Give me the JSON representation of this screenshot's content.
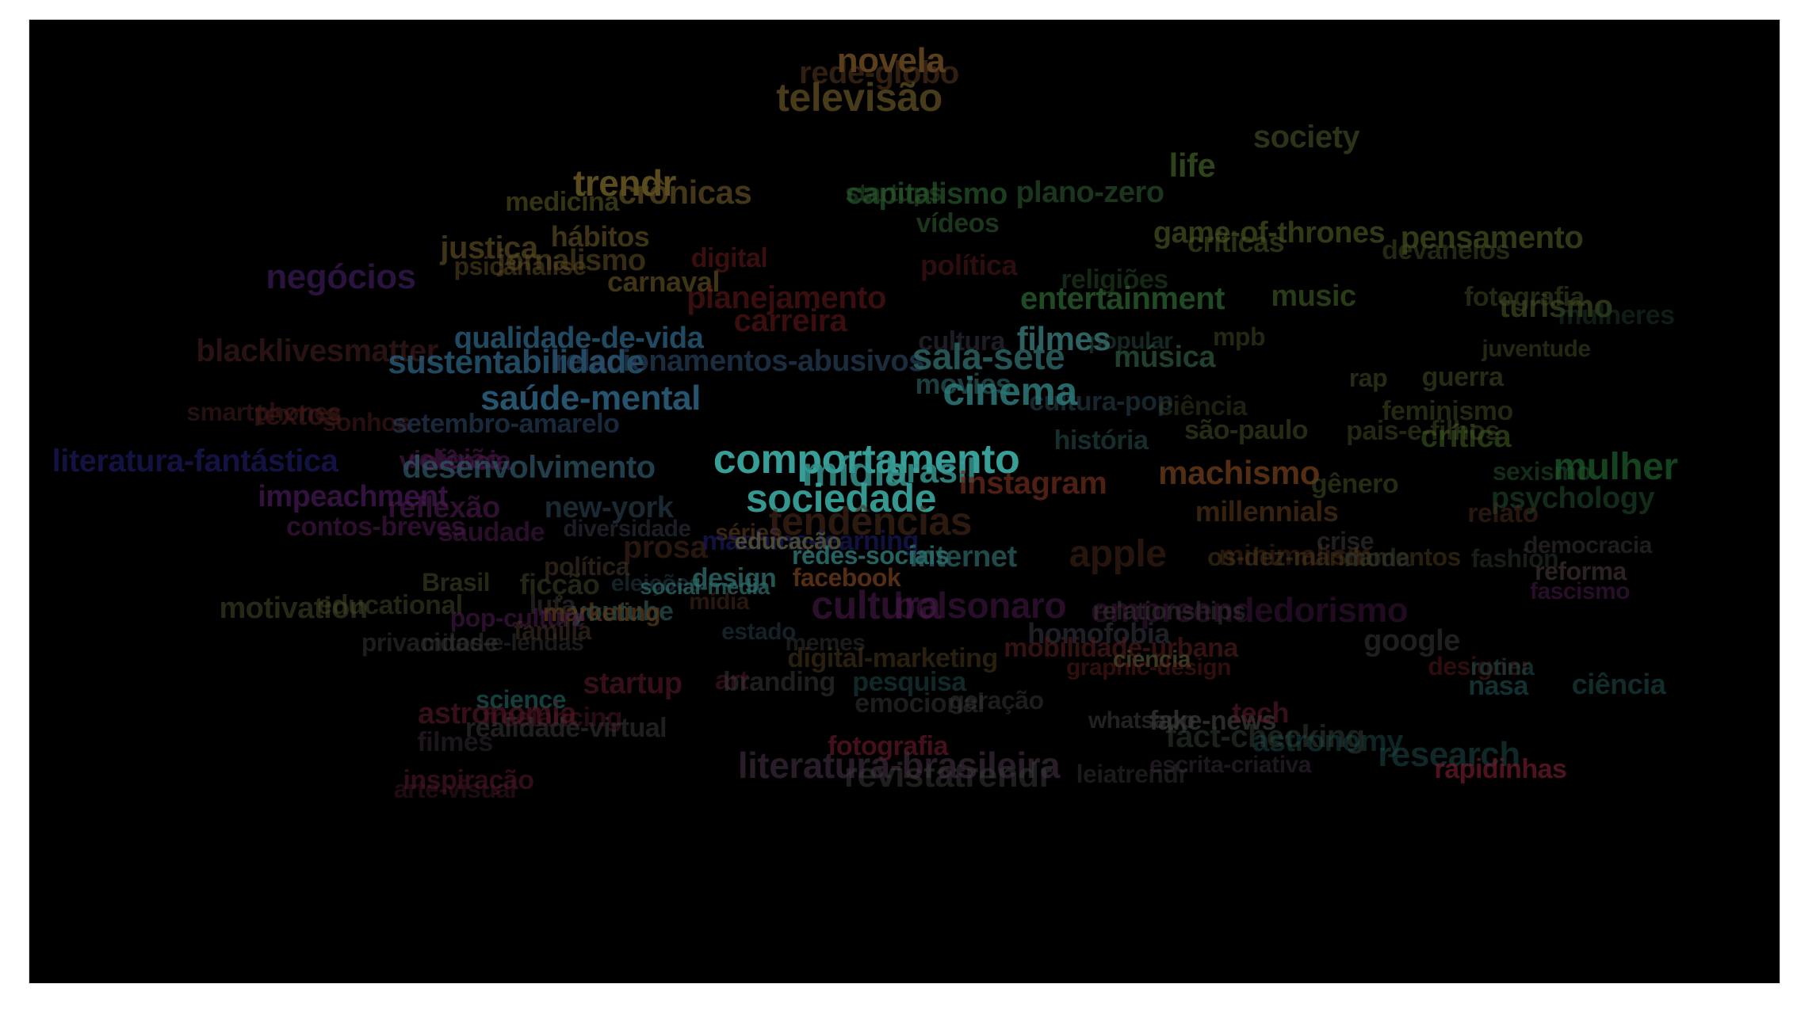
{
  "colors": {
    "teal": "#2f9e99",
    "background": "#000000"
  },
  "words": [
    {
      "text": "novela",
      "color": "#6a4a22",
      "opacity": 0.85
    },
    {
      "text": "rede-globo",
      "color": "#5a3a1f",
      "opacity": 0.55
    },
    {
      "text": "televisão",
      "color": "#5a4a20",
      "opacity": 0.8
    },
    {
      "text": "society",
      "color": "#3e4a24",
      "opacity": 0.7
    },
    {
      "text": "life",
      "color": "#3e5a22",
      "opacity": 0.75
    },
    {
      "text": "trendr",
      "color": "#6a5a22",
      "opacity": 0.85
    },
    {
      "text": "crônicas",
      "color": "#5a4a20",
      "opacity": 0.75
    },
    {
      "text": "medicina",
      "color": "#4a4a1e",
      "opacity": 0.7
    },
    {
      "text": "capitalismo",
      "color": "#2e6a32",
      "opacity": 0.6
    },
    {
      "text": "plano-zero",
      "color": "#2e5a30",
      "opacity": 0.6
    },
    {
      "text": "startups",
      "color": "#2e5a30",
      "opacity": 0.5
    },
    {
      "text": "vídeos",
      "color": "#2e5a30",
      "opacity": 0.6
    },
    {
      "text": "hábitos",
      "color": "#5a4a20",
      "opacity": 0.7
    },
    {
      "text": "game-of-thrones",
      "color": "#4a5a22",
      "opacity": 0.65
    },
    {
      "text": "pensamento",
      "color": "#4a5a22",
      "opacity": 0.65
    },
    {
      "text": "críticas",
      "color": "#4a5a22",
      "opacity": 0.55
    },
    {
      "text": "devaneios",
      "color": "#3e4a22",
      "opacity": 0.55
    },
    {
      "text": "justiça",
      "color": "#5a4a20",
      "opacity": 0.7
    },
    {
      "text": "jornalismo",
      "color": "#5a4a20",
      "opacity": 0.6
    },
    {
      "text": "psicanálise",
      "color": "#5a4a20",
      "opacity": 0.55
    },
    {
      "text": "negócios",
      "color": "#3a1a55",
      "opacity": 0.75
    },
    {
      "text": "digital",
      "color": "#6a1a1a",
      "opacity": 0.55
    },
    {
      "text": "carnaval",
      "color": "#5a4a20",
      "opacity": 0.7
    },
    {
      "text": "política",
      "color": "#5a1a1a",
      "opacity": 0.5
    },
    {
      "text": "religiões",
      "color": "#2e5a30",
      "opacity": 0.45
    },
    {
      "text": "entertainment",
      "color": "#2e6a32",
      "opacity": 0.7
    },
    {
      "text": "music",
      "color": "#3e5a22",
      "opacity": 0.65
    },
    {
      "text": "fotografia",
      "color": "#3e4a22",
      "opacity": 0.55
    },
    {
      "text": "planejamento",
      "color": "#6a1a1a",
      "opacity": 0.55
    },
    {
      "text": "turismo",
      "color": "#3e4a22",
      "opacity": 0.7
    },
    {
      "text": "mulheres",
      "color": "#1e3a2a",
      "opacity": 0.5
    },
    {
      "text": "juventude",
      "color": "#3e4a22",
      "opacity": 0.55
    },
    {
      "text": "qualidade-de-vida",
      "color": "#2e6a8a",
      "opacity": 0.7
    },
    {
      "text": "carreira",
      "color": "#6a1a1a",
      "opacity": 0.55
    },
    {
      "text": "cultura",
      "color": "#3a3a4a",
      "opacity": 0.5
    },
    {
      "text": "filmes",
      "color": "#3a7a7a",
      "opacity": 0.8
    },
    {
      "text": "popular",
      "color": "#2e5a50",
      "opacity": 0.45
    },
    {
      "text": "mpb",
      "color": "#3e4a22",
      "opacity": 0.55
    },
    {
      "text": "blacklivesmatter",
      "color": "#3a1a1a",
      "opacity": 0.7
    },
    {
      "text": "sustentabilidade",
      "color": "#2e6a8a",
      "opacity": 0.7
    },
    {
      "text": "relacionamentos-abusivos",
      "color": "#2e4a6a",
      "opacity": 0.6
    },
    {
      "text": "sala-sete",
      "color": "#2e6a6a",
      "opacity": 0.8
    },
    {
      "text": "música",
      "color": "#2e5a40",
      "opacity": 0.7
    },
    {
      "text": "rap",
      "color": "#3e4a22",
      "opacity": 0.6
    },
    {
      "text": "guerra",
      "color": "#3e4a22",
      "opacity": 0.6
    },
    {
      "text": "cultura-pop",
      "color": "#2e4a5a",
      "opacity": 0.5
    },
    {
      "text": "movies",
      "color": "#2e6a6a",
      "opacity": 0.6
    },
    {
      "text": "saúde-mental",
      "color": "#2e6a8a",
      "opacity": 0.8
    },
    {
      "text": "cinema",
      "color": "#2e7a7a",
      "opacity": 0.85
    },
    {
      "text": "feminismo",
      "color": "#3e4a22",
      "opacity": 0.55
    },
    {
      "text": "smartphones",
      "color": "#3a1a1a",
      "opacity": 0.65
    },
    {
      "text": "textos",
      "color": "#4a1a1a",
      "opacity": 0.6
    },
    {
      "text": "sonhos",
      "color": "#4a1a1a",
      "opacity": 0.55
    },
    {
      "text": "setembro-amarelo",
      "color": "#2e4a6a",
      "opacity": 0.55
    },
    {
      "text": "ciência",
      "color": "#3e4a22",
      "opacity": 0.45
    },
    {
      "text": "são-paulo",
      "color": "#3e4a22",
      "opacity": 0.6
    },
    {
      "text": "pais-e-filhos",
      "color": "#3e4a22",
      "opacity": 0.55
    },
    {
      "text": "crítica",
      "color": "#3e5a22",
      "opacity": 0.6
    },
    {
      "text": "história",
      "color": "#2e5a5a",
      "opacity": 0.5
    },
    {
      "text": "literatura-fantástica",
      "color": "#1a1a5a",
      "opacity": 0.75
    },
    {
      "text": "violência",
      "color": "#4a1a4a",
      "opacity": 0.65
    },
    {
      "text": "religião",
      "color": "#4a1a4a",
      "opacity": 0.6
    },
    {
      "text": "desenvolvimento",
      "color": "#2e5a6a",
      "opacity": 0.7
    },
    {
      "text": "comportamento",
      "color": "#3aa8a0",
      "opacity": 0.95
    },
    {
      "text": "mídia",
      "color": "#35958f",
      "opacity": 0.85
    },
    {
      "text": "brasil",
      "color": "#35958f",
      "opacity": 0.85
    },
    {
      "text": "instagram",
      "color": "#6a2a1a",
      "opacity": 0.75
    },
    {
      "text": "machismo",
      "color": "#6a3a1a",
      "opacity": 0.8
    },
    {
      "text": "gênero",
      "color": "#3e4a22",
      "opacity": 0.6
    },
    {
      "text": "sexismo",
      "color": "#1e4a2a",
      "opacity": 0.6
    },
    {
      "text": "mulher",
      "color": "#1e5a2a",
      "opacity": 0.75
    },
    {
      "text": "psychology",
      "color": "#1e4a2a",
      "opacity": 0.6
    },
    {
      "text": "impeachment",
      "color": "#4a1a5a",
      "opacity": 0.7
    },
    {
      "text": "reflexão",
      "color": "#4a1a4a",
      "opacity": 0.65
    },
    {
      "text": "new-york",
      "color": "#2e4a5a",
      "opacity": 0.55
    },
    {
      "text": "sociedade",
      "color": "#3aa8a0",
      "opacity": 0.9
    },
    {
      "text": "millennials",
      "color": "#5a3a1a",
      "opacity": 0.6
    },
    {
      "text": "relato",
      "color": "#4a2a1a",
      "opacity": 0.55
    },
    {
      "text": "contos-breves",
      "color": "#4a1a4a",
      "opacity": 0.6
    },
    {
      "text": "saudade",
      "color": "#4a1a4a",
      "opacity": 0.55
    },
    {
      "text": "diversidade",
      "color": "#3a3a4a",
      "opacity": 0.5
    },
    {
      "text": "séries",
      "color": "#5a3a1a",
      "opacity": 0.65
    },
    {
      "text": "tendências",
      "color": "#4a2a1a",
      "opacity": 0.6
    },
    {
      "text": "crise",
      "color": "#3e3a3a",
      "opacity": 0.55
    },
    {
      "text": "democracia",
      "color": "#3e3a3a",
      "opacity": 0.5
    },
    {
      "text": "prosa",
      "color": "#4a2a1a",
      "opacity": 0.55
    },
    {
      "text": "machine-learning",
      "color": "#1a1a5a",
      "opacity": 0.7
    },
    {
      "text": "educação",
      "color": "#5a5a3a",
      "opacity": 0.8
    },
    {
      "text": "redes-sociais",
      "color": "#2e7a7a",
      "opacity": 0.8
    },
    {
      "text": "internet",
      "color": "#2e6a6a",
      "opacity": 0.7
    },
    {
      "text": "apple",
      "color": "#4a2a1a",
      "opacity": 0.5
    },
    {
      "text": "minimalism",
      "color": "#4a2a1a",
      "opacity": 0.5
    },
    {
      "text": "os-dez-mandamentos",
      "color": "#4a3a1a",
      "opacity": 0.55
    },
    {
      "text": "moda",
      "color": "#2e3a2e",
      "opacity": 0.6
    },
    {
      "text": "fashion",
      "color": "#2e3a2e",
      "opacity": 0.5
    },
    {
      "text": "reforma",
      "color": "#4a3a3a",
      "opacity": 0.6
    },
    {
      "text": "fascismo",
      "color": "#4a1a4a",
      "opacity": 0.55
    },
    {
      "text": "política",
      "color": "#4a3a2a",
      "opacity": 0.55
    },
    {
      "text": "Brasil",
      "color": "#4a4a2a",
      "opacity": 0.55
    },
    {
      "text": "ficção",
      "color": "#4a4a2a",
      "opacity": 0.5
    },
    {
      "text": "eleições",
      "color": "#2e4a5a",
      "opacity": 0.45
    },
    {
      "text": "design",
      "color": "#2e6a6a",
      "opacity": 0.8
    },
    {
      "text": "social-media",
      "color": "#2e6a6a",
      "opacity": 0.75
    },
    {
      "text": "facebook",
      "color": "#6a3a1a",
      "opacity": 0.8
    },
    {
      "text": "mídia",
      "color": "#4a2a1a",
      "opacity": 0.55
    },
    {
      "text": "cultura",
      "color": "#4a1a4a",
      "opacity": 0.6
    },
    {
      "text": "bolsonaro",
      "color": "#4a1a4a",
      "opacity": 0.55
    },
    {
      "text": "empreendedorismo",
      "color": "#4a1a4a",
      "opacity": 0.45
    },
    {
      "text": "relationships",
      "color": "#3e3a3a",
      "opacity": 0.5
    },
    {
      "text": "motivation",
      "color": "#4a4a2a",
      "opacity": 0.55
    },
    {
      "text": "educational",
      "color": "#4a4a2a",
      "opacity": 0.5
    },
    {
      "text": "luta",
      "color": "#3e3a3a",
      "opacity": 0.5
    },
    {
      "text": "youtube",
      "color": "#2e5a5a",
      "opacity": 0.65
    },
    {
      "text": "marketing",
      "color": "#5a3a1a",
      "opacity": 0.75
    },
    {
      "text": "pop-culture",
      "color": "#4a1a4a",
      "opacity": 0.6
    },
    {
      "text": "família",
      "color": "#4a3a2a",
      "opacity": 0.5
    },
    {
      "text": "estado",
      "color": "#2e4a5a",
      "opacity": 0.45
    },
    {
      "text": "homofobia",
      "color": "#3a3a4a",
      "opacity": 0.55
    },
    {
      "text": "google",
      "color": "#3a3a3a",
      "opacity": 0.55
    },
    {
      "text": "privacidade",
      "color": "#3a3a3a",
      "opacity": 0.5
    },
    {
      "text": "mitos-e-lendas",
      "color": "#3a3a3a",
      "opacity": 0.45
    },
    {
      "text": "memes",
      "color": "#3a3a3a",
      "opacity": 0.45
    },
    {
      "text": "digital-marketing",
      "color": "#4a3a1a",
      "opacity": 0.55
    },
    {
      "text": "mobilidade-urbana",
      "color": "#4a1a1a",
      "opacity": 0.7
    },
    {
      "text": "ciencia",
      "color": "#4a4a2a",
      "opacity": 0.8
    },
    {
      "text": "graphic-design",
      "color": "#5a1a1a",
      "opacity": 0.55
    },
    {
      "text": "designer",
      "color": "#5a1a1a",
      "opacity": 0.5
    },
    {
      "text": "rotina",
      "color": "#1e4a4a",
      "opacity": 0.6
    },
    {
      "text": "nasa",
      "color": "#1e4a4a",
      "opacity": 0.65
    },
    {
      "text": "ciência",
      "color": "#1e4a4a",
      "opacity": 0.6
    },
    {
      "text": "startup",
      "color": "#5a1a2a",
      "opacity": 0.6
    },
    {
      "text": "art",
      "color": "#5a1a2a",
      "opacity": 0.5
    },
    {
      "text": "branding",
      "color": "#3a3a3a",
      "opacity": 0.55
    },
    {
      "text": "pesquisa",
      "color": "#1e4a4a",
      "opacity": 0.55
    },
    {
      "text": "science",
      "color": "#1e5a5a",
      "opacity": 0.7
    },
    {
      "text": "astronomia",
      "color": "#5a1a2a",
      "opacity": 0.6
    },
    {
      "text": "freelancing",
      "color": "#5a1a2a",
      "opacity": 0.45
    },
    {
      "text": "realidade-virtual",
      "color": "#3a3a3a",
      "opacity": 0.55
    },
    {
      "text": "emocional",
      "color": "#3a3a3a",
      "opacity": 0.5
    },
    {
      "text": "geração",
      "color": "#3a3a3a",
      "opacity": 0.5
    },
    {
      "text": "whatsapp",
      "color": "#3a3a3a",
      "opacity": 0.6
    },
    {
      "text": "fake-news",
      "color": "#3a3a3a",
      "opacity": 0.75
    },
    {
      "text": "fact-checking",
      "color": "#2e3a2e",
      "opacity": 0.6
    },
    {
      "text": "astronomy",
      "color": "#1e4a4a",
      "opacity": 0.5
    },
    {
      "text": "research",
      "color": "#1e4a4a",
      "opacity": 0.55
    },
    {
      "text": "rapidinhas",
      "color": "#6a1a2a",
      "opacity": 0.75
    },
    {
      "text": "tech",
      "color": "#5a1a2a",
      "opacity": 0.6
    },
    {
      "text": "filmes",
      "color": "#3a2a3a",
      "opacity": 0.5
    },
    {
      "text": "escrita-criativa",
      "color": "#3a2a3a",
      "opacity": 0.55
    },
    {
      "text": "fotografia",
      "color": "#6a1a2a",
      "opacity": 0.65
    },
    {
      "text": "inspiração",
      "color": "#5a1a2a",
      "opacity": 0.55
    },
    {
      "text": "arte-visual",
      "color": "#4a1a2a",
      "opacity": 0.45
    },
    {
      "text": "literatura-brasileira",
      "color": "#3a2a3a",
      "opacity": 0.7
    },
    {
      "text": "revistatrendr",
      "color": "#3a3a3a",
      "opacity": 0.55
    },
    {
      "text": "leiatrendr",
      "color": "#3a3a3a",
      "opacity": 0.45
    }
  ]
}
